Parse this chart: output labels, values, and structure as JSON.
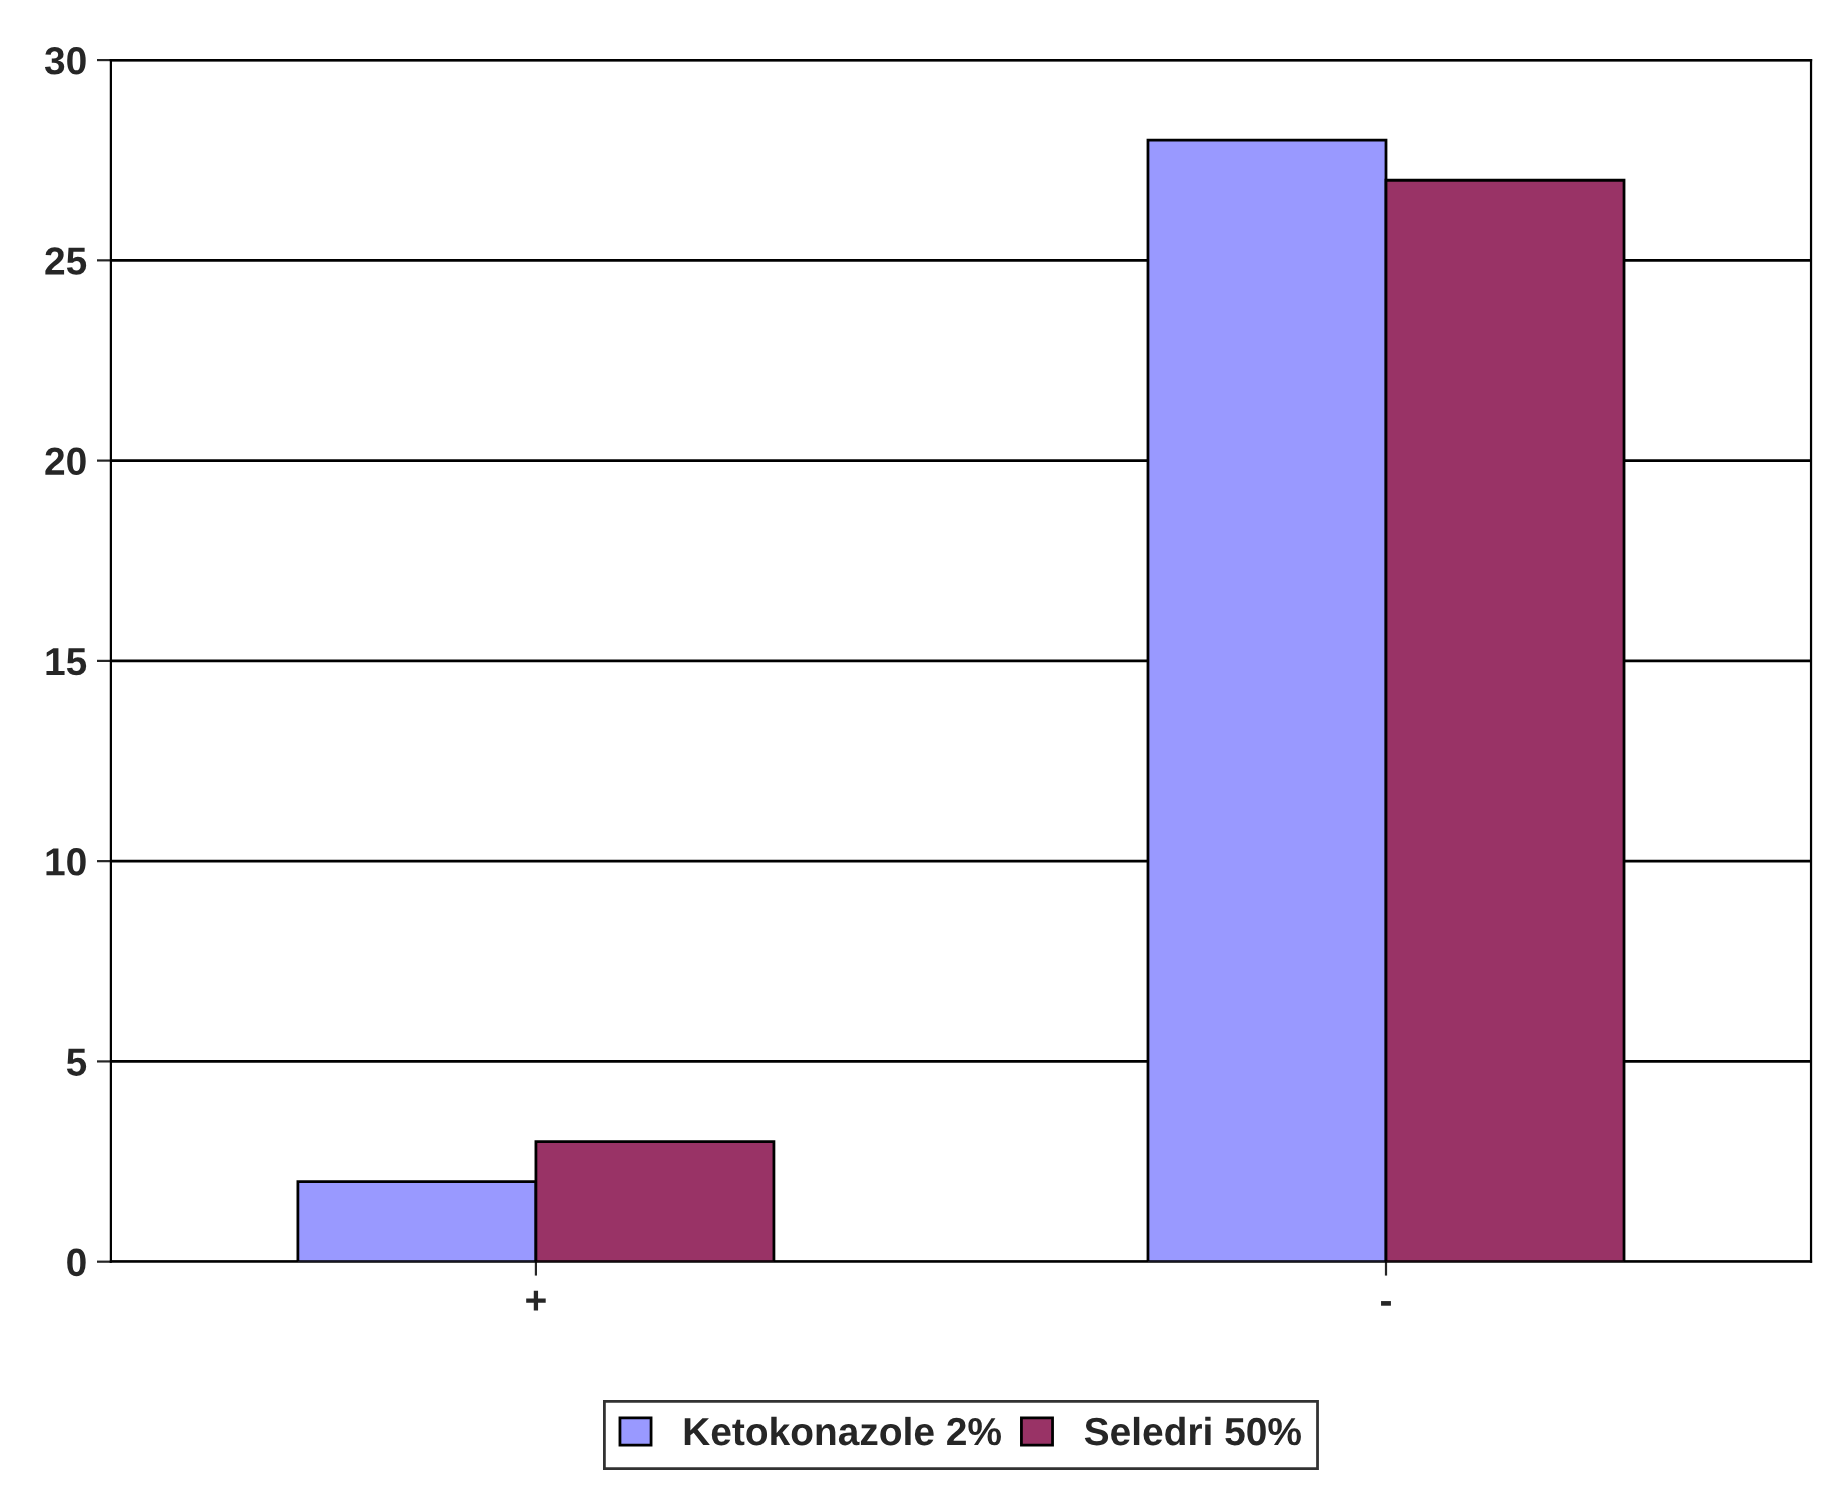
{
  "chart_data": {
    "type": "bar",
    "categories": [
      "+",
      "-"
    ],
    "series": [
      {
        "name": "Ketokonazole 2%",
        "color": "#9999ff",
        "values": [
          2,
          28
        ]
      },
      {
        "name": "Seledri 50%",
        "color": "#993366",
        "values": [
          3,
          27
        ]
      }
    ],
    "ylim": [
      0,
      30
    ],
    "yticks": [
      0,
      5,
      10,
      15,
      20,
      25,
      30
    ],
    "grid": "y",
    "legend": "bottom"
  }
}
